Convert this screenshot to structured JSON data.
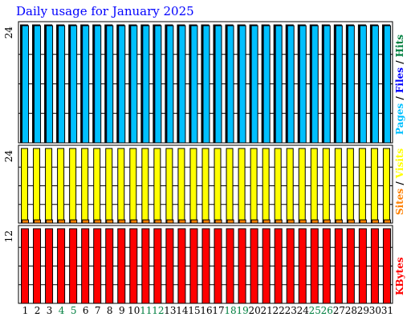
{
  "title": "Daily usage for January 2025",
  "colors": {
    "hits": "#008040",
    "files": "#0000ff",
    "pages": "#00c0ff",
    "visits": "#ffff00",
    "sites": "#ff8000",
    "kbytes": "#ff0000",
    "weekend_label": "#008040",
    "grid": "#000000"
  },
  "chart_data": [
    {
      "type": "bar",
      "panel": "pages-files-hits",
      "categories": [
        "1",
        "2",
        "3",
        "4",
        "5",
        "6",
        "7",
        "8",
        "9",
        "10",
        "11",
        "12",
        "13",
        "14",
        "15",
        "16",
        "17",
        "18",
        "19",
        "20",
        "21",
        "22",
        "23",
        "24",
        "25",
        "26",
        "27",
        "28",
        "29",
        "30",
        "31"
      ],
      "weekend_days": [
        "4",
        "5",
        "11",
        "12",
        "18",
        "19",
        "25",
        "26"
      ],
      "ymax_label": "24",
      "ylim": [
        0,
        24
      ],
      "series": [
        {
          "key": "hits",
          "values": [
            24,
            24,
            24,
            24,
            24,
            24,
            24,
            24,
            24,
            24,
            24,
            24,
            24,
            24,
            24,
            24,
            24,
            24,
            24,
            24,
            24,
            24,
            24,
            24,
            24,
            24,
            24,
            24,
            24,
            24,
            24
          ]
        },
        {
          "key": "files",
          "values": [
            24,
            24,
            24,
            24,
            24,
            24,
            24,
            24,
            24,
            24,
            24,
            24,
            24,
            24,
            24,
            24,
            24,
            24,
            24,
            24,
            24,
            24,
            24,
            24,
            24,
            24,
            24,
            24,
            24,
            24,
            24
          ]
        },
        {
          "key": "pages",
          "values": [
            24,
            24,
            24,
            24,
            24,
            24,
            24,
            24,
            24,
            24,
            24,
            24,
            24,
            24,
            24,
            24,
            24,
            24,
            24,
            24,
            24,
            24,
            24,
            24,
            24,
            24,
            24,
            24,
            24,
            24,
            24
          ]
        }
      ],
      "side_label": [
        {
          "text": "Pages",
          "key": "pages"
        },
        {
          "text": " / ",
          "key": "sep"
        },
        {
          "text": "Files",
          "key": "files"
        },
        {
          "text": " / ",
          "key": "sep"
        },
        {
          "text": "Hits",
          "key": "hits"
        }
      ]
    },
    {
      "type": "bar",
      "panel": "sites-visits",
      "ymax_label": "24",
      "ylim": [
        0,
        24
      ],
      "series": [
        {
          "key": "visits",
          "values": [
            24,
            24,
            24,
            24,
            24,
            24,
            24,
            24,
            24,
            24,
            24,
            24,
            24,
            24,
            24,
            24,
            24,
            24,
            24,
            24,
            24,
            24,
            24,
            24,
            24,
            24,
            24,
            24,
            24,
            24,
            24
          ]
        },
        {
          "key": "sites",
          "values": [
            1,
            1,
            1,
            1,
            1,
            1,
            1,
            1,
            1,
            1,
            1,
            1,
            1,
            1,
            1,
            1,
            1,
            1,
            1,
            1,
            1,
            1,
            1,
            1,
            1,
            1,
            1,
            1,
            1,
            1,
            1
          ]
        }
      ],
      "side_label": [
        {
          "text": "Sites",
          "key": "sites"
        },
        {
          "text": " / ",
          "key": "sep"
        },
        {
          "text": "Visits",
          "key": "visits"
        }
      ]
    },
    {
      "type": "bar",
      "panel": "kbytes",
      "ymax_label": "12",
      "ylim": [
        0,
        12
      ],
      "series": [
        {
          "key": "kbytes",
          "values": [
            12,
            12,
            12,
            12,
            12,
            12,
            12,
            12,
            12,
            12,
            12,
            12,
            12,
            12,
            12,
            12,
            12,
            12,
            12,
            12,
            12,
            12,
            12,
            12,
            12,
            12,
            12,
            12,
            12,
            12,
            12
          ]
        }
      ],
      "side_label": [
        {
          "text": "KBytes",
          "key": "kbytes"
        }
      ]
    }
  ]
}
